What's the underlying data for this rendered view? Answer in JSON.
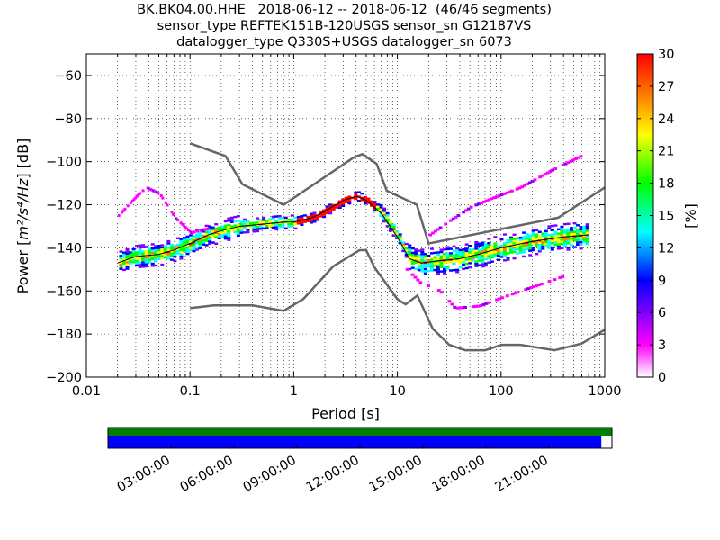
{
  "header": {
    "title_lines": [
      "BK.BK04.00.HHE   2018-06-12 -- 2018-06-12  (46/46 segments)",
      "sensor_type REFTEK151B-120USGS sensor_sn G12187VS",
      "datalogger_type Q330S+USGS datalogger_sn 6073"
    ]
  },
  "chart_data": {
    "type": "heatmap",
    "xlabel": "Period [s]",
    "ylabel_prefix": "Power [",
    "ylabel_math": "m²/s⁴/Hz",
    "ylabel_suffix": "] [dB]",
    "x_scale": "log",
    "xlim": [
      0.01,
      1000
    ],
    "ylim": [
      -200,
      -50
    ],
    "x_ticks": [
      0.01,
      0.1,
      1,
      10,
      100,
      1000
    ],
    "x_tick_labels": [
      "0.01",
      "0.1",
      "1",
      "10",
      "100",
      "1000"
    ],
    "y_ticks": [
      -200,
      -180,
      -160,
      -140,
      -120,
      -100,
      -80,
      -60
    ],
    "y_tick_labels": [
      "−200",
      "−180",
      "−160",
      "−140",
      "−120",
      "−100",
      "−80",
      "−60"
    ],
    "grid": true,
    "colorbar": {
      "label": "[%]",
      "range": [
        0,
        30
      ],
      "ticks": [
        "0",
        "3",
        "6",
        "9",
        "12",
        "15",
        "18",
        "21",
        "24",
        "27",
        "30"
      ],
      "colors": [
        "#ffffff",
        "#ff00ff",
        "#7f00ff",
        "#0000ff",
        "#00ffff",
        "#00ff00",
        "#ffff00",
        "#ff7f00",
        "#ff0000"
      ]
    },
    "model_curves": {
      "high_noise_model": [
        [
          0.1,
          -91.5
        ],
        [
          0.22,
          -97.4
        ],
        [
          0.32,
          -110.5
        ],
        [
          0.8,
          -120
        ],
        [
          3.8,
          -98
        ],
        [
          4.6,
          -96.5
        ],
        [
          6.3,
          -101
        ],
        [
          7.9,
          -113.5
        ],
        [
          15.4,
          -120
        ],
        [
          20,
          -138
        ],
        [
          354.8,
          -126
        ],
        [
          1000,
          -112
        ]
      ],
      "low_noise_model": [
        [
          0.1,
          -168
        ],
        [
          0.17,
          -166.7
        ],
        [
          0.4,
          -166.7
        ],
        [
          0.8,
          -169.2
        ],
        [
          1.24,
          -163.7
        ],
        [
          2.4,
          -148.6
        ],
        [
          4.3,
          -141.1
        ],
        [
          5,
          -141.1
        ],
        [
          6,
          -149
        ],
        [
          10,
          -163.8
        ],
        [
          12,
          -166.2
        ],
        [
          15.6,
          -162.1
        ],
        [
          21.9,
          -177.5
        ],
        [
          31.6,
          -185
        ],
        [
          45,
          -187.5
        ],
        [
          70,
          -187.5
        ],
        [
          101,
          -185
        ],
        [
          154,
          -185
        ],
        [
          328,
          -187.5
        ],
        [
          600,
          -184.4
        ],
        [
          1000,
          -178
        ]
      ]
    },
    "mode_curve": [
      [
        0.02,
        -147
      ],
      [
        0.03,
        -144
      ],
      [
        0.05,
        -143
      ],
      [
        0.07,
        -141
      ],
      [
        0.1,
        -138
      ],
      [
        0.15,
        -134
      ],
      [
        0.2,
        -132
      ],
      [
        0.3,
        -130
      ],
      [
        0.5,
        -129
      ],
      [
        0.8,
        -128
      ],
      [
        1,
        -128
      ],
      [
        1.5,
        -126
      ],
      [
        2,
        -123
      ],
      [
        3,
        -118
      ],
      [
        4,
        -116
      ],
      [
        5,
        -118
      ],
      [
        7,
        -124
      ],
      [
        10,
        -135
      ],
      [
        13,
        -145
      ],
      [
        17,
        -147
      ],
      [
        25,
        -146
      ],
      [
        40,
        -145
      ],
      [
        60,
        -143
      ],
      [
        100,
        -140
      ],
      [
        200,
        -137
      ],
      [
        400,
        -135
      ],
      [
        700,
        -134
      ]
    ],
    "scatter_segments_upper": [
      [
        0.02,
        -125
      ],
      [
        0.03,
        -116
      ],
      [
        0.037,
        -112
      ],
      [
        0.05,
        -115
      ],
      [
        0.07,
        -126
      ],
      [
        0.1,
        -133
      ],
      [
        0.15,
        -131
      ]
    ],
    "scatter_segments_long": [
      [
        20,
        -134
      ],
      [
        30,
        -128
      ],
      [
        50,
        -121
      ],
      [
        80,
        -117
      ],
      [
        150,
        -112
      ],
      [
        300,
        -104
      ],
      [
        600,
        -97
      ]
    ],
    "scatter_segments_lower": [
      [
        12,
        -150
      ],
      [
        16,
        -156
      ],
      [
        25,
        -160
      ],
      [
        35,
        -168
      ],
      [
        60,
        -167
      ],
      [
        100,
        -163
      ],
      [
        200,
        -158
      ],
      [
        400,
        -153
      ]
    ]
  },
  "timeline": {
    "tick_labels": [
      "03:00:00",
      "06:00:00",
      "09:00:00",
      "12:00:00",
      "15:00:00",
      "18:00:00",
      "21:00:00"
    ],
    "data_coverage_fraction": 0.979,
    "colors": {
      "top_bar": "#008000",
      "bottom_bar": "#0000ff"
    }
  }
}
